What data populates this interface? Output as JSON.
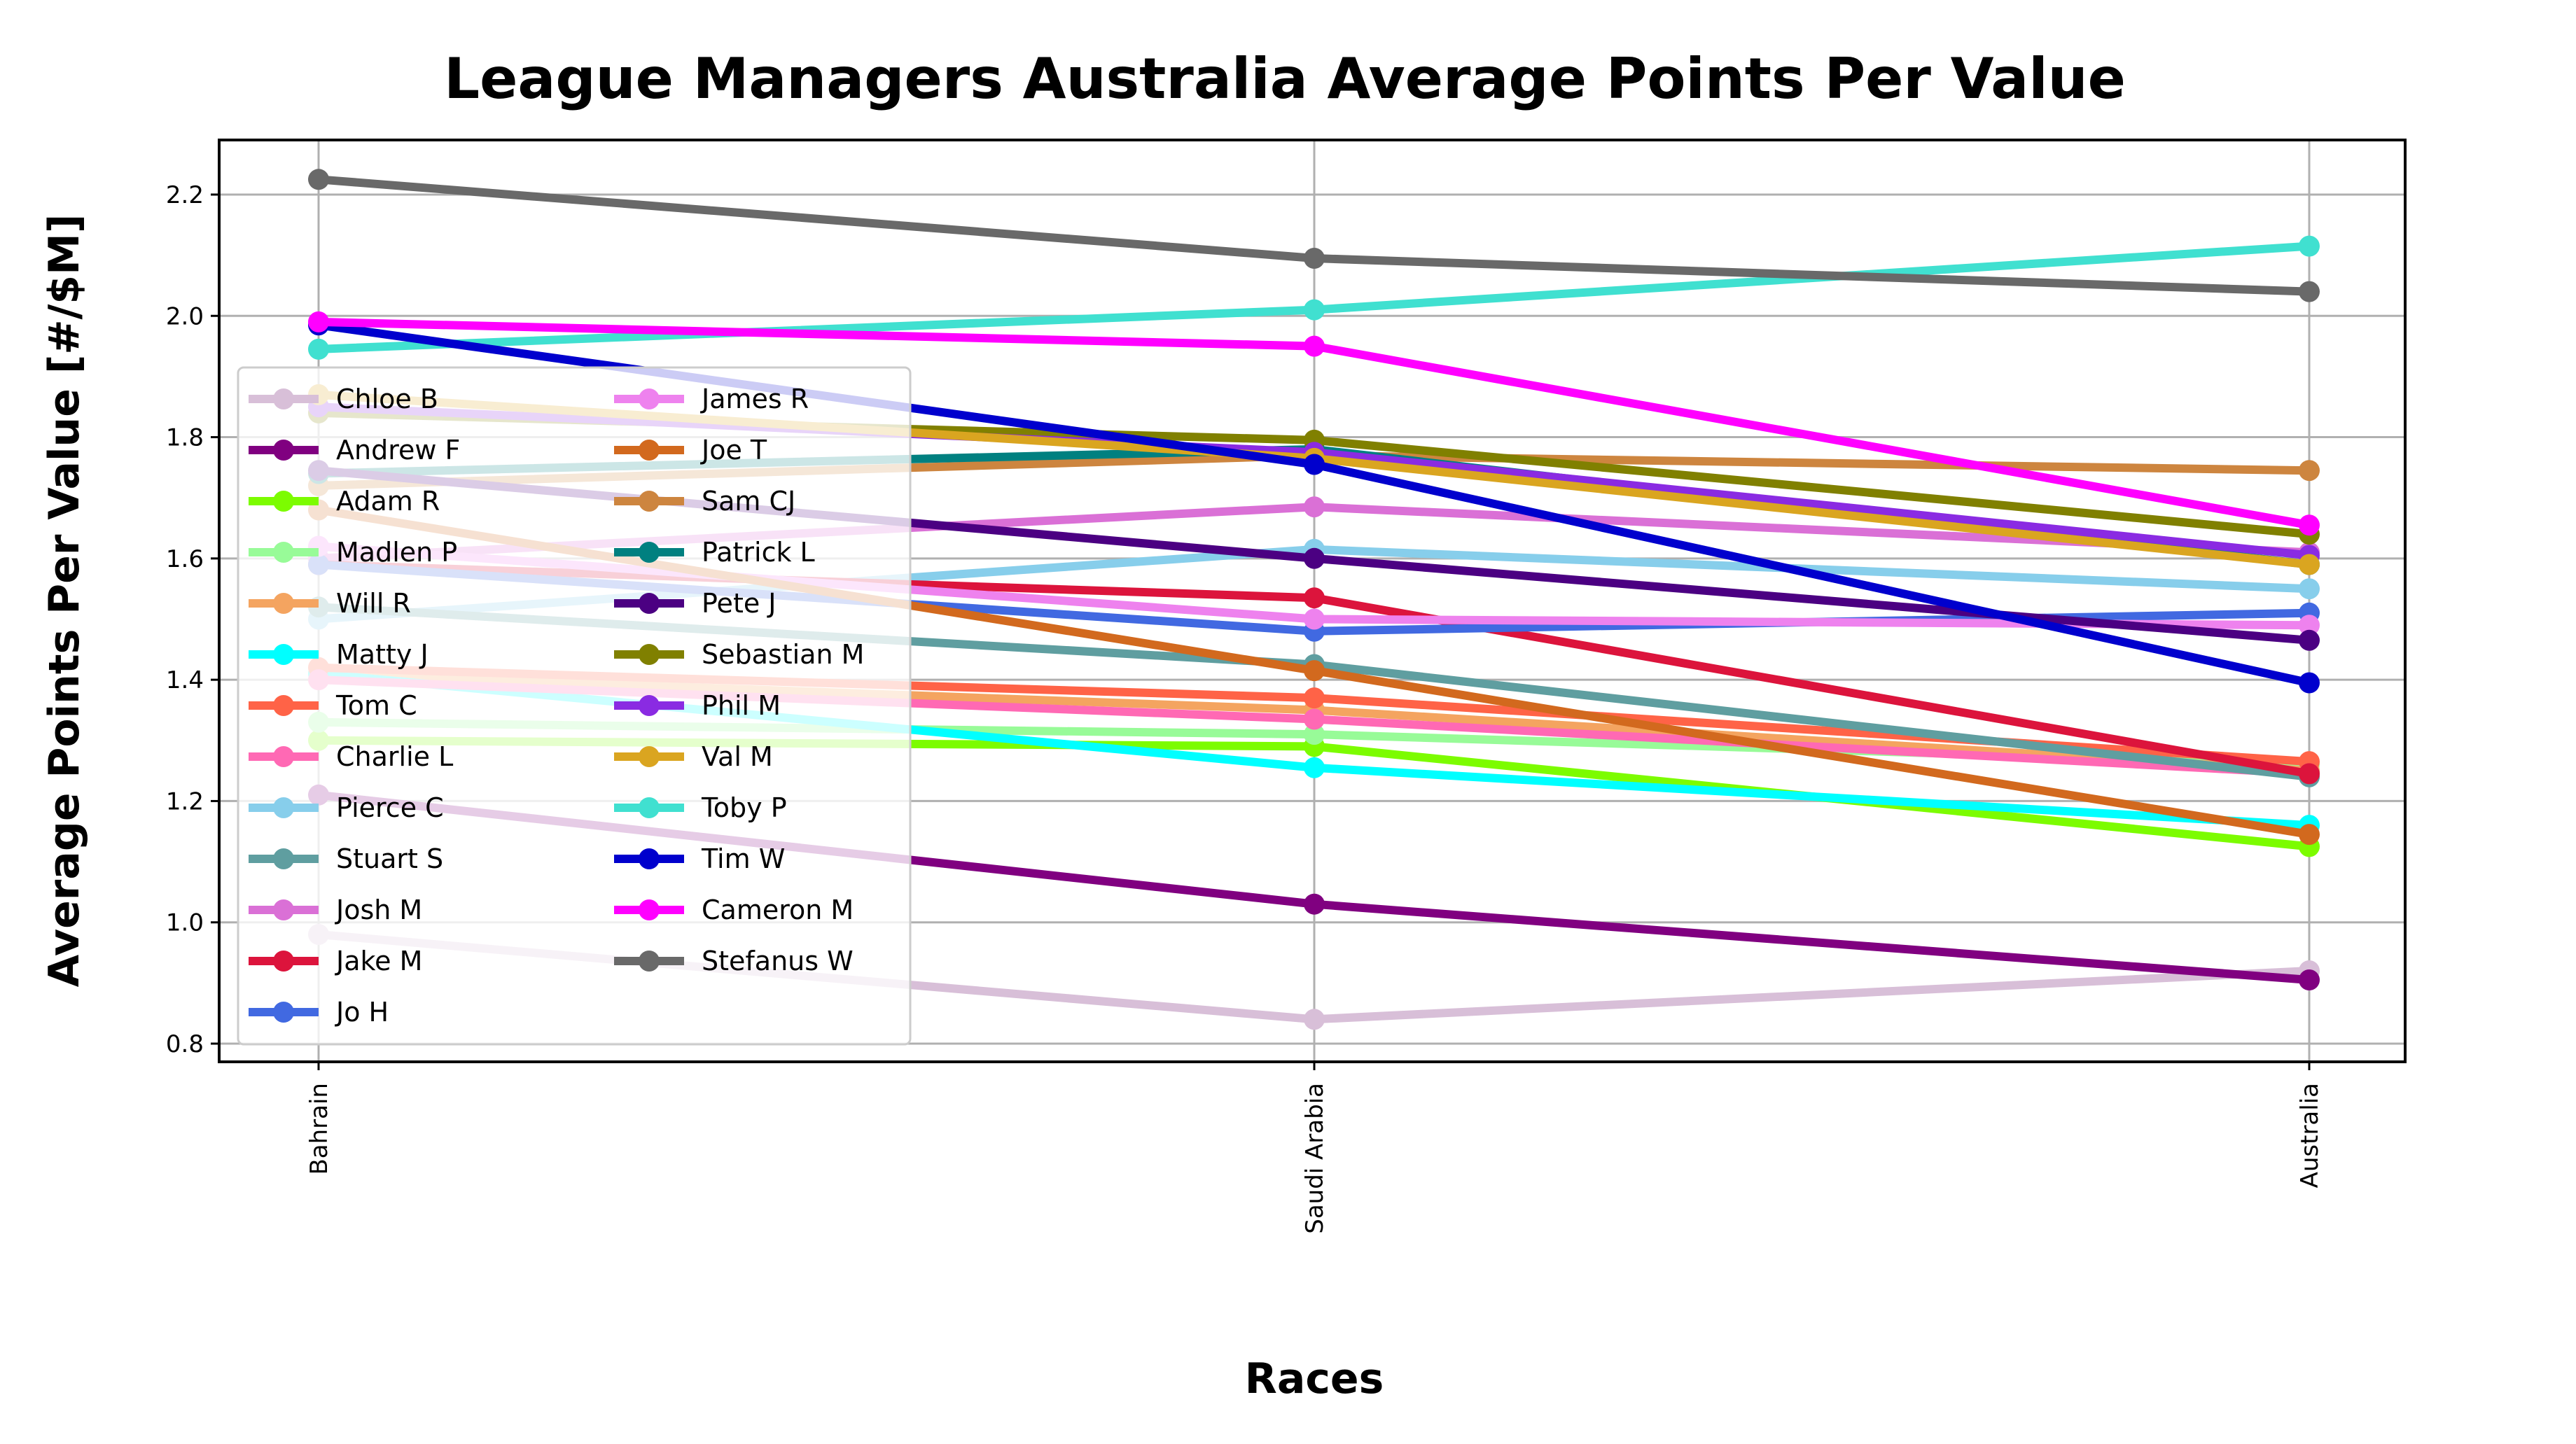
{
  "chart_data": {
    "type": "line",
    "title": "League Managers Australia Average Points Per Value",
    "xlabel": "Races",
    "ylabel": "Average Points Per Value [#/$M]",
    "categories": [
      "Bahrain",
      "Saudi Arabia",
      "Australia"
    ],
    "ylim": [
      0.77,
      2.29
    ],
    "yticks": [
      "0.8",
      "1.0",
      "1.2",
      "1.4",
      "1.6",
      "1.8",
      "2.0",
      "2.2"
    ],
    "grid": true,
    "legend_position": "lower-left",
    "series": [
      {
        "name": "Chloe B",
        "color": "#d8bfd8",
        "values": [
          0.98,
          0.84,
          0.92
        ]
      },
      {
        "name": "Andrew F",
        "color": "#800080",
        "values": [
          1.21,
          1.03,
          0.905
        ]
      },
      {
        "name": "Adam R",
        "color": "#7cfc00",
        "values": [
          1.3,
          1.29,
          1.125
        ]
      },
      {
        "name": "Madlen P",
        "color": "#98fb98",
        "values": [
          1.33,
          1.31,
          1.26
        ]
      },
      {
        "name": "Will R",
        "color": "#f4a460",
        "values": [
          1.41,
          1.35,
          1.25
        ]
      },
      {
        "name": "Matty J",
        "color": "#00ffff",
        "values": [
          1.41,
          1.255,
          1.16
        ]
      },
      {
        "name": "Tom C",
        "color": "#ff6347",
        "values": [
          1.42,
          1.37,
          1.265
        ]
      },
      {
        "name": "Charlie L",
        "color": "#ff69b4",
        "values": [
          1.4,
          1.335,
          1.245
        ]
      },
      {
        "name": "Pierce C",
        "color": "#87ceeb",
        "values": [
          1.5,
          1.615,
          1.55
        ]
      },
      {
        "name": "Stuart S",
        "color": "#5f9ea0",
        "values": [
          1.52,
          1.425,
          1.24
        ]
      },
      {
        "name": "Josh M",
        "color": "#da70d6",
        "values": [
          1.6,
          1.685,
          1.61
        ]
      },
      {
        "name": "Jake M",
        "color": "#dc143c",
        "values": [
          1.59,
          1.535,
          1.245
        ]
      },
      {
        "name": "Jo H",
        "color": "#4169e1",
        "values": [
          1.59,
          1.48,
          1.51
        ]
      },
      {
        "name": "James R",
        "color": "#ee82ee",
        "values": [
          1.62,
          1.5,
          1.49
        ]
      },
      {
        "name": "Joe T",
        "color": "#d2691e",
        "values": [
          1.68,
          1.415,
          1.145
        ]
      },
      {
        "name": "Sam CJ",
        "color": "#cd853f",
        "values": [
          1.72,
          1.77,
          1.745
        ]
      },
      {
        "name": "Patrick L",
        "color": "#008080",
        "values": [
          1.74,
          1.78,
          1.59
        ]
      },
      {
        "name": "Pete J",
        "color": "#4b0082",
        "values": [
          1.745,
          1.6,
          1.465
        ]
      },
      {
        "name": "Sebastian M",
        "color": "#808000",
        "values": [
          1.84,
          1.795,
          1.64
        ]
      },
      {
        "name": "Phil M",
        "color": "#8a2be2",
        "values": [
          1.85,
          1.775,
          1.605
        ]
      },
      {
        "name": "Val M",
        "color": "#daa520",
        "values": [
          1.87,
          1.765,
          1.59
        ]
      },
      {
        "name": "Toby P",
        "color": "#40e0d0",
        "values": [
          1.945,
          2.01,
          2.115
        ]
      },
      {
        "name": "Tim W",
        "color": "#0000cd",
        "values": [
          1.985,
          1.755,
          1.395
        ]
      },
      {
        "name": "Cameron M",
        "color": "#ff00ff",
        "values": [
          1.99,
          1.95,
          1.655
        ]
      },
      {
        "name": "Stefanus W",
        "color": "#696969",
        "values": [
          2.225,
          2.095,
          2.04
        ]
      }
    ]
  }
}
